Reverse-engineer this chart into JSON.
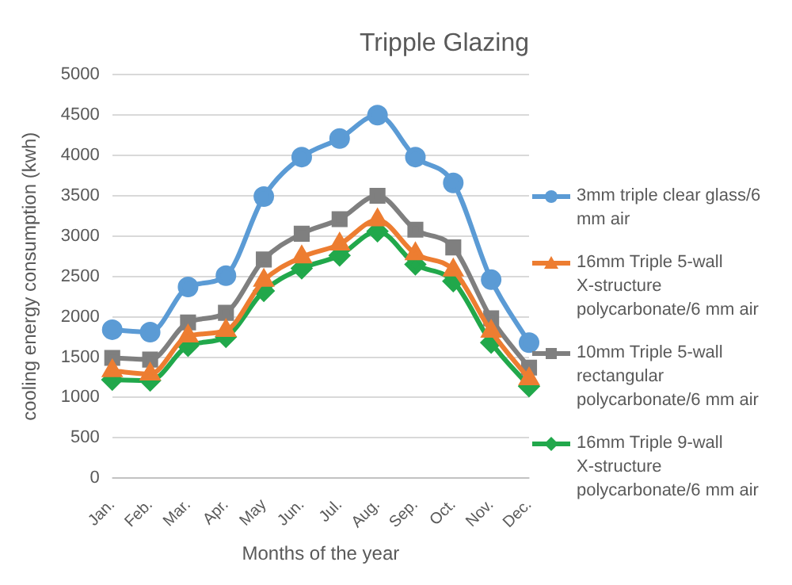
{
  "chart_data": {
    "type": "line",
    "title": "Tripple Glazing",
    "xlabel": "Months of the year",
    "ylabel": "cooling energy consumption (kwh)",
    "categories": [
      "Jan.",
      "Feb.",
      "Mar.",
      "Apr.",
      "May",
      "Jun.",
      "Jul.",
      "Aug.",
      "Sep.",
      "Oct.",
      "Nov.",
      "Dec."
    ],
    "series": [
      {
        "name": "3mm triple clear glass/6 mm air",
        "color": "#5b9bd5",
        "marker": "circle",
        "values": [
          1840,
          1810,
          2370,
          2510,
          3490,
          3980,
          4210,
          4500,
          3980,
          3660,
          2460,
          1680
        ]
      },
      {
        "name": "16mm Triple 5-wall X-structure polycarbonate/6 mm air",
        "color": "#ed7d31",
        "marker": "triangle",
        "values": [
          1330,
          1290,
          1760,
          1830,
          2450,
          2740,
          2900,
          3200,
          2780,
          2580,
          1820,
          1230
        ]
      },
      {
        "name": "10mm Triple 5-wall rectangular polycarbonate/6 mm air",
        "color": "#7f7f7f",
        "marker": "square",
        "values": [
          1490,
          1470,
          1930,
          2050,
          2710,
          3030,
          3210,
          3500,
          3080,
          2860,
          1980,
          1370
        ]
      },
      {
        "name": "16mm Triple 9-wall X-structure polycarbonate/6 mm air",
        "color": "#21a84b",
        "marker": "diamond",
        "values": [
          1220,
          1210,
          1640,
          1750,
          2320,
          2600,
          2760,
          3060,
          2650,
          2440,
          1680,
          1140
        ]
      }
    ],
    "ylim": [
      0,
      5000
    ],
    "yticks": [
      0,
      500,
      1000,
      1500,
      2000,
      2500,
      3000,
      3500,
      4000,
      4500,
      5000
    ],
    "grid": "y",
    "legend": "right"
  }
}
